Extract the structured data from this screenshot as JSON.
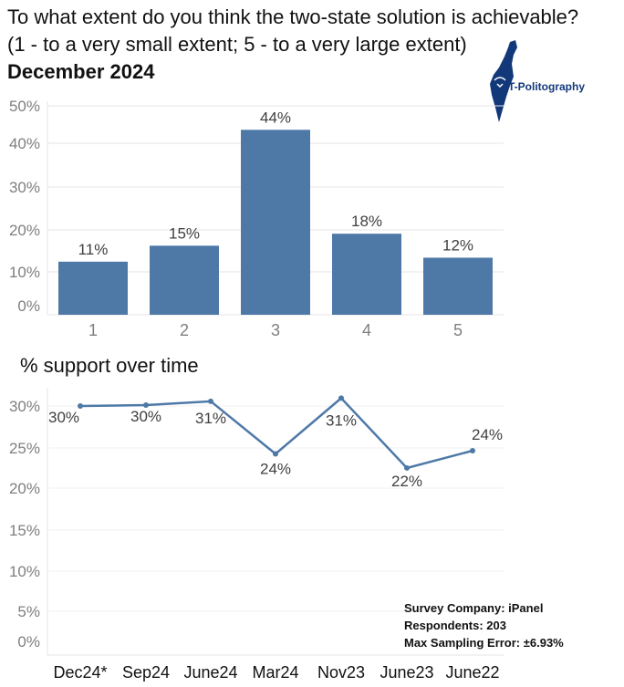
{
  "title": {
    "line1": "To what extent do you think the two-state solution is achievable?",
    "line2": "(1 - to a very small extent; 5 - to a very large extent)",
    "line3": "December 2024"
  },
  "logo": {
    "text": "T-Politography",
    "color": "#12387a"
  },
  "colors": {
    "bar": "#4e79a7",
    "line": "#4e79a7",
    "grid": "#e6e6e6",
    "axis_text": "#7f7f7f"
  },
  "chart_data": [
    {
      "type": "bar",
      "title": "",
      "categories": [
        "1",
        "2",
        "3",
        "4",
        "5"
      ],
      "values": [
        11,
        15,
        44,
        18,
        12
      ],
      "value_labels": [
        "11%",
        "15%",
        "44%",
        "18%",
        "12%"
      ],
      "y_ticks": [
        "0%",
        "10%",
        "20%",
        "30%",
        "40%",
        "50%"
      ],
      "ylim": [
        0,
        50
      ],
      "grid": true
    },
    {
      "type": "line",
      "title": "% support over time",
      "categories": [
        "Dec24*",
        "Sep24",
        "June24",
        "Mar24",
        "Nov23",
        "June23",
        "June22"
      ],
      "values": [
        30,
        30,
        31,
        24,
        31,
        22,
        24
      ],
      "value_labels": [
        "30%",
        "30%",
        "31%",
        "24%",
        "31%",
        "22%",
        "24%"
      ],
      "y_ticks": [
        "0%",
        "5%",
        "10%",
        "15%",
        "20%",
        "25%",
        "30%"
      ],
      "ylim": [
        0,
        32
      ],
      "grid": true
    }
  ],
  "survey": {
    "company": "Survey Company: iPanel",
    "respondents": "Respondents: 203",
    "error": "Max Sampling Error: ±6.93%"
  }
}
